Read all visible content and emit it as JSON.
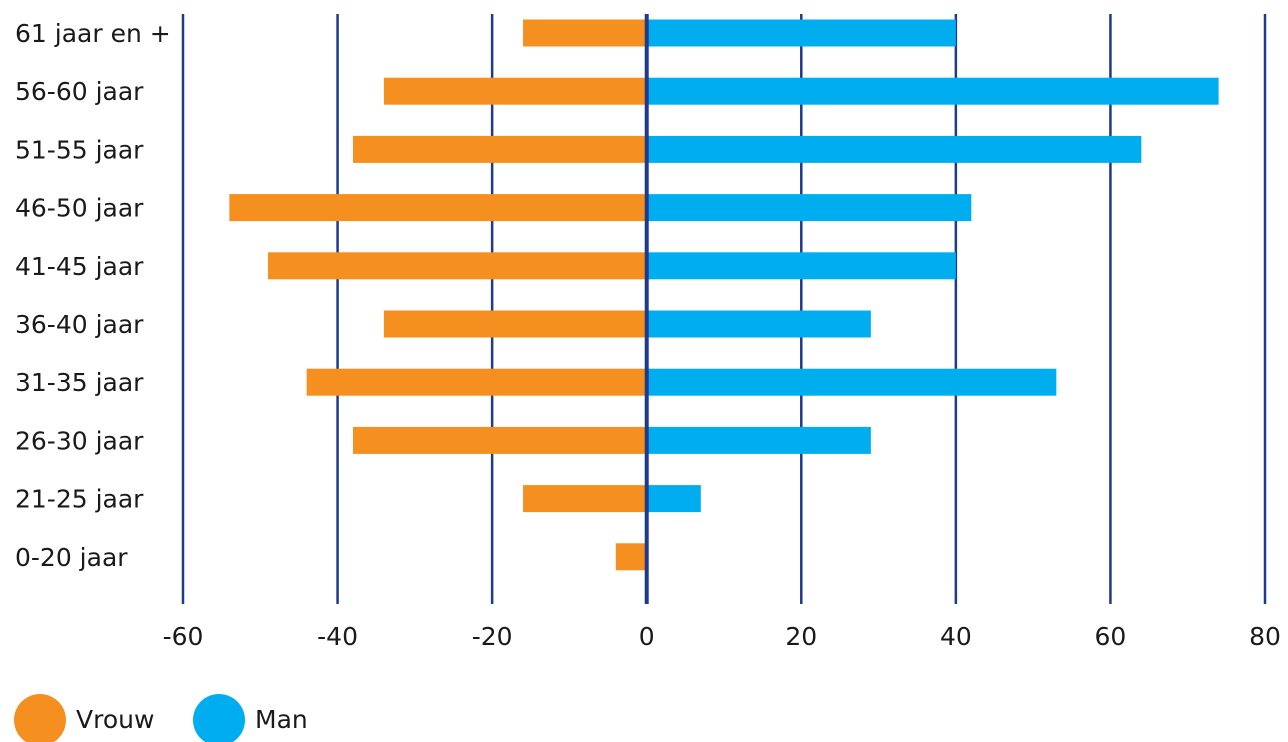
{
  "chart_data": {
    "type": "bar",
    "orientation": "horizontal",
    "categories": [
      "61 jaar en +",
      "56-60 jaar",
      "51-55 jaar",
      "46-50 jaar",
      "41-45 jaar",
      "36-40 jaar",
      "31-35 jaar",
      "26-30 jaar",
      "21-25 jaar",
      "0-20 jaar"
    ],
    "series": [
      {
        "name": "Vrouw",
        "color": "#f58f1f",
        "values": [
          -16,
          -34,
          -38,
          -54,
          -49,
          -34,
          -44,
          -38,
          -16,
          -4
        ]
      },
      {
        "name": "Man",
        "color": "#00aeef",
        "values": [
          40,
          74,
          64,
          42,
          40,
          29,
          53,
          29,
          7,
          0
        ]
      }
    ],
    "xlim": [
      -60,
      80
    ],
    "xticks": [
      "-60",
      "-40",
      "-20",
      "0",
      "20",
      "40",
      "60",
      "80"
    ],
    "xtick_values": [
      -60,
      -40,
      -20,
      0,
      20,
      40,
      60,
      80
    ],
    "grid": true,
    "grid_color": "#1f3a8a",
    "legend_position": "bottom-left",
    "title": "",
    "xlabel": "",
    "ylabel": ""
  }
}
